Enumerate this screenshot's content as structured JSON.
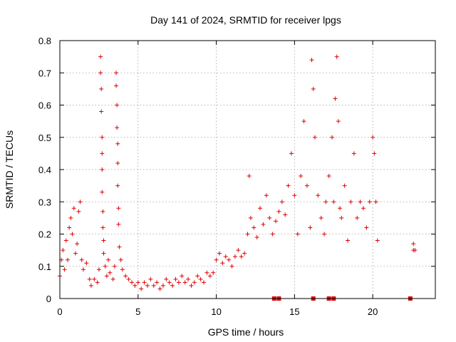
{
  "chart_data": {
    "type": "scatter",
    "title": "Day 141 of 2024, SRMTID for receiver lpgs",
    "xlabel": "GPS time / hours",
    "ylabel": "SRMTID / TECUs",
    "xlim": [
      0,
      24
    ],
    "ylim": [
      0,
      0.8
    ],
    "xticks": [
      0,
      5,
      10,
      15,
      20
    ],
    "yticks": [
      0,
      0.1,
      0.2,
      0.3,
      0.4,
      0.5,
      0.6,
      0.7,
      0.8
    ],
    "xtick_labels": [
      "0",
      "5",
      "10",
      "15",
      "20"
    ],
    "ytick_labels": [
      "0",
      "0.1",
      "0.2",
      "0.3",
      "0.4",
      "0.5",
      "0.6",
      "0.7",
      "0.8"
    ],
    "grid": true,
    "marker": "plus",
    "color": "#e00000",
    "series": [
      {
        "name": "SRMTID",
        "points": [
          [
            0.0,
            0.07
          ],
          [
            0.1,
            0.12
          ],
          [
            0.2,
            0.15
          ],
          [
            0.3,
            0.09
          ],
          [
            0.4,
            0.18
          ],
          [
            0.5,
            0.12
          ],
          [
            0.6,
            0.22
          ],
          [
            0.7,
            0.25
          ],
          [
            0.8,
            0.2
          ],
          [
            0.9,
            0.28
          ],
          [
            1.0,
            0.14
          ],
          [
            1.1,
            0.17
          ],
          [
            1.2,
            0.27
          ],
          [
            1.3,
            0.3
          ],
          [
            1.4,
            0.12
          ],
          [
            1.5,
            0.09
          ],
          [
            1.7,
            0.11
          ],
          [
            1.9,
            0.06
          ],
          [
            2.0,
            0.04
          ],
          [
            2.2,
            0.06
          ],
          [
            2.4,
            0.05
          ],
          [
            2.5,
            0.09
          ],
          [
            2.6,
            0.75
          ],
          [
            2.6,
            0.7
          ],
          [
            2.65,
            0.65
          ],
          [
            2.65,
            0.58
          ],
          [
            2.7,
            0.5
          ],
          [
            2.7,
            0.45
          ],
          [
            2.7,
            0.4
          ],
          [
            2.7,
            0.33
          ],
          [
            2.75,
            0.27
          ],
          [
            2.75,
            0.22
          ],
          [
            2.8,
            0.18
          ],
          [
            2.8,
            0.14
          ],
          [
            2.9,
            0.1
          ],
          [
            3.0,
            0.07
          ],
          [
            3.1,
            0.12
          ],
          [
            3.2,
            0.08
          ],
          [
            3.4,
            0.06
          ],
          [
            3.5,
            0.1
          ],
          [
            3.6,
            0.7
          ],
          [
            3.6,
            0.66
          ],
          [
            3.65,
            0.6
          ],
          [
            3.65,
            0.53
          ],
          [
            3.7,
            0.48
          ],
          [
            3.7,
            0.42
          ],
          [
            3.7,
            0.35
          ],
          [
            3.75,
            0.28
          ],
          [
            3.75,
            0.23
          ],
          [
            3.8,
            0.16
          ],
          [
            3.9,
            0.12
          ],
          [
            4.0,
            0.09
          ],
          [
            4.2,
            0.07
          ],
          [
            4.4,
            0.06
          ],
          [
            4.6,
            0.05
          ],
          [
            4.8,
            0.04
          ],
          [
            5.0,
            0.05
          ],
          [
            5.2,
            0.03
          ],
          [
            5.4,
            0.05
          ],
          [
            5.6,
            0.04
          ],
          [
            5.8,
            0.06
          ],
          [
            6.0,
            0.04
          ],
          [
            6.2,
            0.05
          ],
          [
            6.4,
            0.03
          ],
          [
            6.6,
            0.04
          ],
          [
            6.8,
            0.06
          ],
          [
            7.0,
            0.05
          ],
          [
            7.2,
            0.04
          ],
          [
            7.4,
            0.06
          ],
          [
            7.6,
            0.05
          ],
          [
            7.8,
            0.07
          ],
          [
            8.0,
            0.05
          ],
          [
            8.2,
            0.06
          ],
          [
            8.4,
            0.04
          ],
          [
            8.6,
            0.05
          ],
          [
            8.8,
            0.07
          ],
          [
            9.0,
            0.06
          ],
          [
            9.2,
            0.05
          ],
          [
            9.4,
            0.08
          ],
          [
            9.6,
            0.07
          ],
          [
            9.8,
            0.08
          ],
          [
            10.0,
            0.12
          ],
          [
            10.2,
            0.14
          ],
          [
            10.4,
            0.11
          ],
          [
            10.6,
            0.13
          ],
          [
            10.8,
            0.12
          ],
          [
            11.0,
            0.1
          ],
          [
            11.2,
            0.13
          ],
          [
            11.4,
            0.15
          ],
          [
            11.6,
            0.13
          ],
          [
            11.8,
            0.14
          ],
          [
            12.0,
            0.2
          ],
          [
            12.1,
            0.38
          ],
          [
            12.2,
            0.25
          ],
          [
            12.4,
            0.22
          ],
          [
            12.6,
            0.19
          ],
          [
            12.8,
            0.28
          ],
          [
            13.0,
            0.23
          ],
          [
            13.2,
            0.32
          ],
          [
            13.4,
            0.25
          ],
          [
            13.6,
            0.2
          ],
          [
            13.8,
            0.24
          ],
          [
            14.0,
            0.27
          ],
          [
            14.2,
            0.3
          ],
          [
            14.4,
            0.26
          ],
          [
            14.6,
            0.35
          ],
          [
            14.8,
            0.45
          ],
          [
            15.0,
            0.32
          ],
          [
            15.2,
            0.2
          ],
          [
            15.4,
            0.38
          ],
          [
            15.6,
            0.55
          ],
          [
            15.8,
            0.35
          ],
          [
            16.0,
            0.22
          ],
          [
            16.1,
            0.74
          ],
          [
            16.2,
            0.65
          ],
          [
            16.3,
            0.5
          ],
          [
            16.5,
            0.32
          ],
          [
            16.7,
            0.25
          ],
          [
            16.9,
            0.2
          ],
          [
            17.0,
            0.3
          ],
          [
            17.2,
            0.38
          ],
          [
            17.4,
            0.5
          ],
          [
            17.5,
            0.3
          ],
          [
            17.6,
            0.62
          ],
          [
            17.7,
            0.75
          ],
          [
            17.8,
            0.55
          ],
          [
            17.9,
            0.28
          ],
          [
            18.0,
            0.25
          ],
          [
            18.2,
            0.35
          ],
          [
            18.4,
            0.18
          ],
          [
            18.6,
            0.3
          ],
          [
            18.8,
            0.45
          ],
          [
            19.0,
            0.25
          ],
          [
            19.2,
            0.3
          ],
          [
            19.4,
            0.28
          ],
          [
            19.6,
            0.22
          ],
          [
            19.8,
            0.3
          ],
          [
            20.0,
            0.5
          ],
          [
            20.1,
            0.45
          ],
          [
            20.2,
            0.3
          ],
          [
            20.3,
            0.18
          ],
          [
            22.6,
            0.17
          ],
          [
            22.6,
            0.15
          ],
          [
            22.7,
            0.15
          ]
        ]
      }
    ],
    "zero_markers_x": [
      13.7,
      14.0,
      16.2,
      17.2,
      17.5,
      22.4
    ]
  }
}
